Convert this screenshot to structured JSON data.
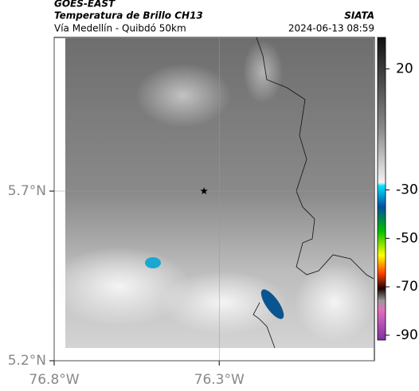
{
  "header": {
    "title": "GOES-EAST",
    "subtitle": "Temperatura de Brillo CH13",
    "source": "SIATA",
    "route": "Vía Medellín - Quibdó 50km",
    "datetime": "2024-06-13 08:59"
  },
  "map": {
    "lonlim": [
      -76.8,
      -75.83
    ],
    "latlim": [
      5.2,
      6.153
    ],
    "lon_ticks": [
      {
        "value": -76.8,
        "label": "76.8°W"
      },
      {
        "value": -76.3,
        "label": "76.3°W"
      }
    ],
    "lat_ticks": [
      {
        "value": 5.2,
        "label": "5.2°N"
      },
      {
        "value": 5.7,
        "label": "5.7°N"
      }
    ],
    "marker": {
      "lon": -76.346,
      "lat": 5.7
    },
    "colorbar": {
      "range": [
        -92,
        33
      ],
      "ticks": [
        20,
        -30,
        -50,
        -70,
        -90
      ]
    }
  }
}
